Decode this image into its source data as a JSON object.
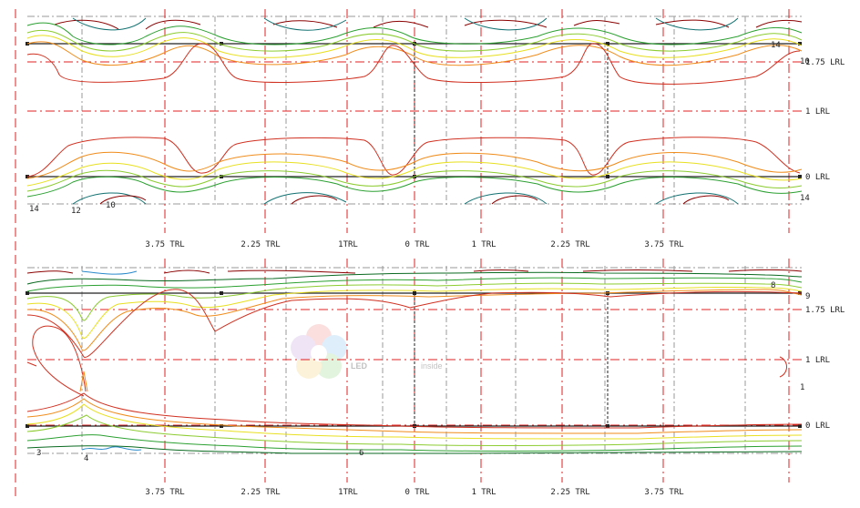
{
  "colors": {
    "red_grid": "#e02020",
    "gray_grid": "#9a9a9a",
    "black": "#222222",
    "iso_dark_red": "#8a0000",
    "iso_red": "#d03020",
    "iso_orange": "#f08c1a",
    "iso_yellow": "#e8e020",
    "iso_lgreen": "#8ccc30",
    "iso_green": "#2aa030",
    "iso_dgreen": "#0a6a20",
    "iso_teal": "#107070",
    "iso_blue": "#2a8acc"
  },
  "watermark": {
    "text_led": "LED",
    "text_inside": "inside",
    "icon": "ledinside-flower-logo"
  },
  "top_panel": {
    "row_labels": [
      "1.75 LRL",
      "1 LRL",
      "0 LRL"
    ],
    "column_labels": [
      "3.75 TRL",
      "2.25 TRL",
      "1TRL",
      "0 TRL",
      "1 TRL",
      "2.25 TRL",
      "3.75 TRL"
    ],
    "contour_labels": [
      "14",
      "12",
      "10",
      "14",
      "10",
      "14"
    ]
  },
  "bottom_panel": {
    "row_labels": [
      "1.75 LRL",
      "1 LRL",
      "0 LRL"
    ],
    "column_labels": [
      "3.75 TRL",
      "2.25 TRL",
      "1TRL",
      "0 TRL",
      "1 TRL",
      "2.25 TRL",
      "3.75 TRL"
    ],
    "contour_labels": [
      "9",
      "1",
      "3",
      "4",
      "6",
      "8"
    ]
  }
}
